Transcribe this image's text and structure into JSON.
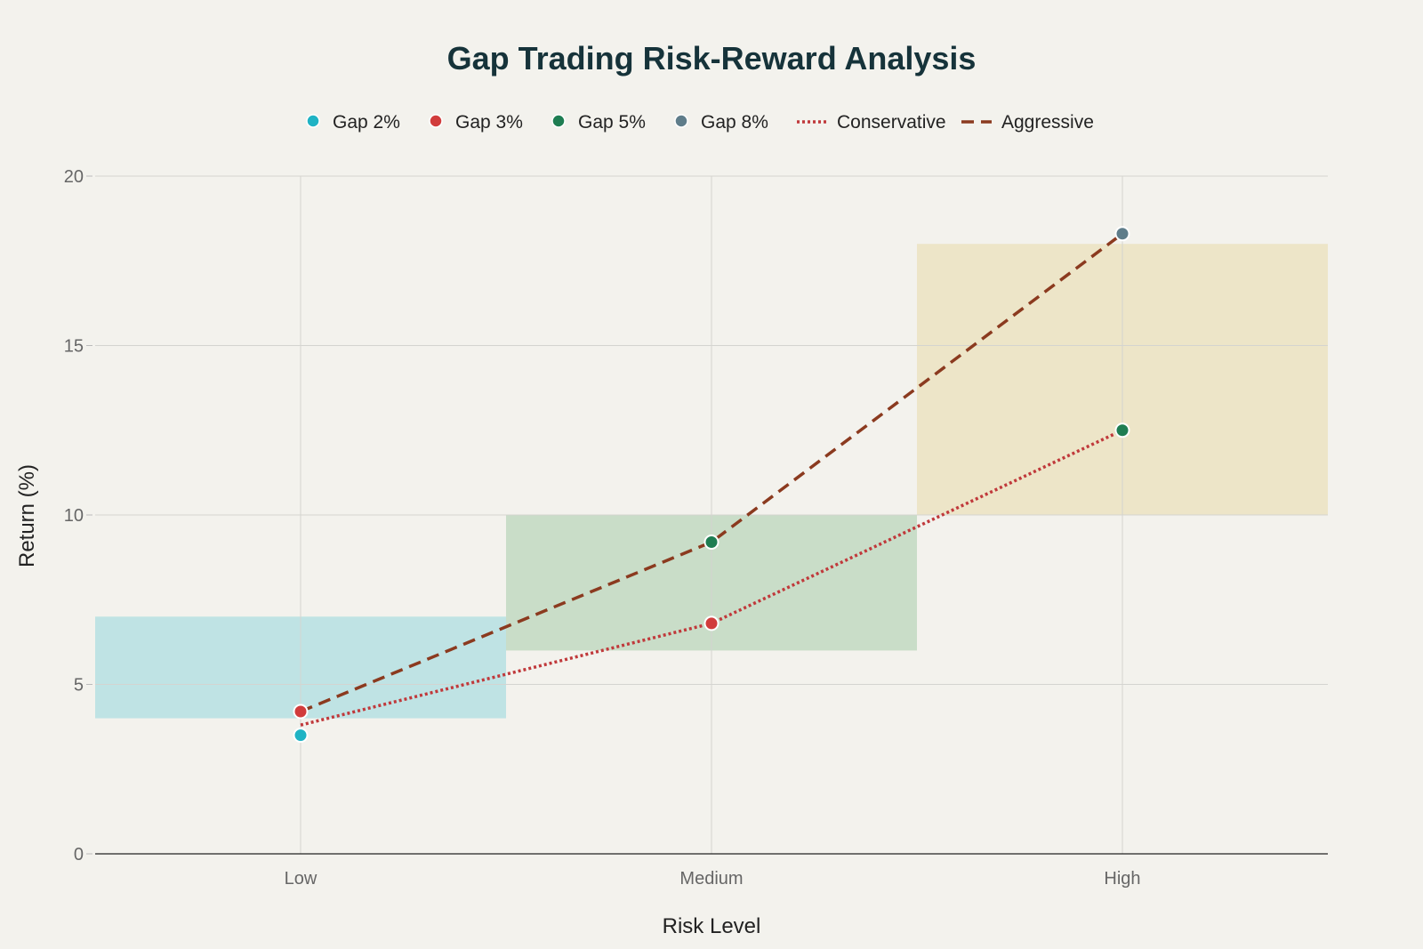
{
  "chart_data": {
    "type": "scatter",
    "title": "Gap Trading Risk-Reward Analysis",
    "xlabel": "Risk Level",
    "ylabel": "Return (%)",
    "categories": [
      "Low",
      "Medium",
      "High"
    ],
    "ylim": [
      0,
      20
    ],
    "yticks": [
      0,
      5,
      10,
      15,
      20
    ],
    "grid": true,
    "legend_position": "top-center",
    "bands": [
      {
        "category": "Low",
        "y_low": 4,
        "y_high": 7,
        "color": "#bfe3e4"
      },
      {
        "category": "Medium",
        "y_low": 6,
        "y_high": 10,
        "color": "#c9ddc8"
      },
      {
        "category": "High",
        "y_low": 10,
        "y_high": 18,
        "color": "#ede5c8"
      }
    ],
    "points": [
      {
        "name": "Gap 2%",
        "x": "Low",
        "y": 3.5,
        "color": "#1fb3c4"
      },
      {
        "name": "Gap 3%",
        "x": "Low",
        "y": 4.2,
        "color": "#d13c3c"
      },
      {
        "name": "Gap 3%",
        "x": "Medium",
        "y": 6.8,
        "color": "#d13c3c"
      },
      {
        "name": "Gap 5%",
        "x": "Medium",
        "y": 9.2,
        "color": "#1e7d52"
      },
      {
        "name": "Gap 5%",
        "x": "High",
        "y": 12.5,
        "color": "#1e7d52"
      },
      {
        "name": "Gap 8%",
        "x": "High",
        "y": 18.3,
        "color": "#5f7d8a"
      }
    ],
    "lines": [
      {
        "name": "Conservative",
        "style": "dotted",
        "color": "#c0393b",
        "x": [
          "Low",
          "Medium",
          "High"
        ],
        "y": [
          3.8,
          6.8,
          12.5
        ]
      },
      {
        "name": "Aggressive",
        "style": "dashed",
        "color": "#8b3a1f",
        "x": [
          "Low",
          "Medium",
          "High"
        ],
        "y": [
          4.2,
          9.2,
          18.3
        ]
      }
    ],
    "legend": [
      {
        "name": "Gap 2%",
        "kind": "marker",
        "color": "#1fb3c4"
      },
      {
        "name": "Gap 3%",
        "kind": "marker",
        "color": "#d13c3c"
      },
      {
        "name": "Gap 5%",
        "kind": "marker",
        "color": "#1e7d52"
      },
      {
        "name": "Gap 8%",
        "kind": "marker",
        "color": "#5f7d8a"
      },
      {
        "name": "Conservative",
        "kind": "dotted",
        "color": "#c0393b"
      },
      {
        "name": "Aggressive",
        "kind": "dashed",
        "color": "#8b3a1f"
      }
    ]
  }
}
